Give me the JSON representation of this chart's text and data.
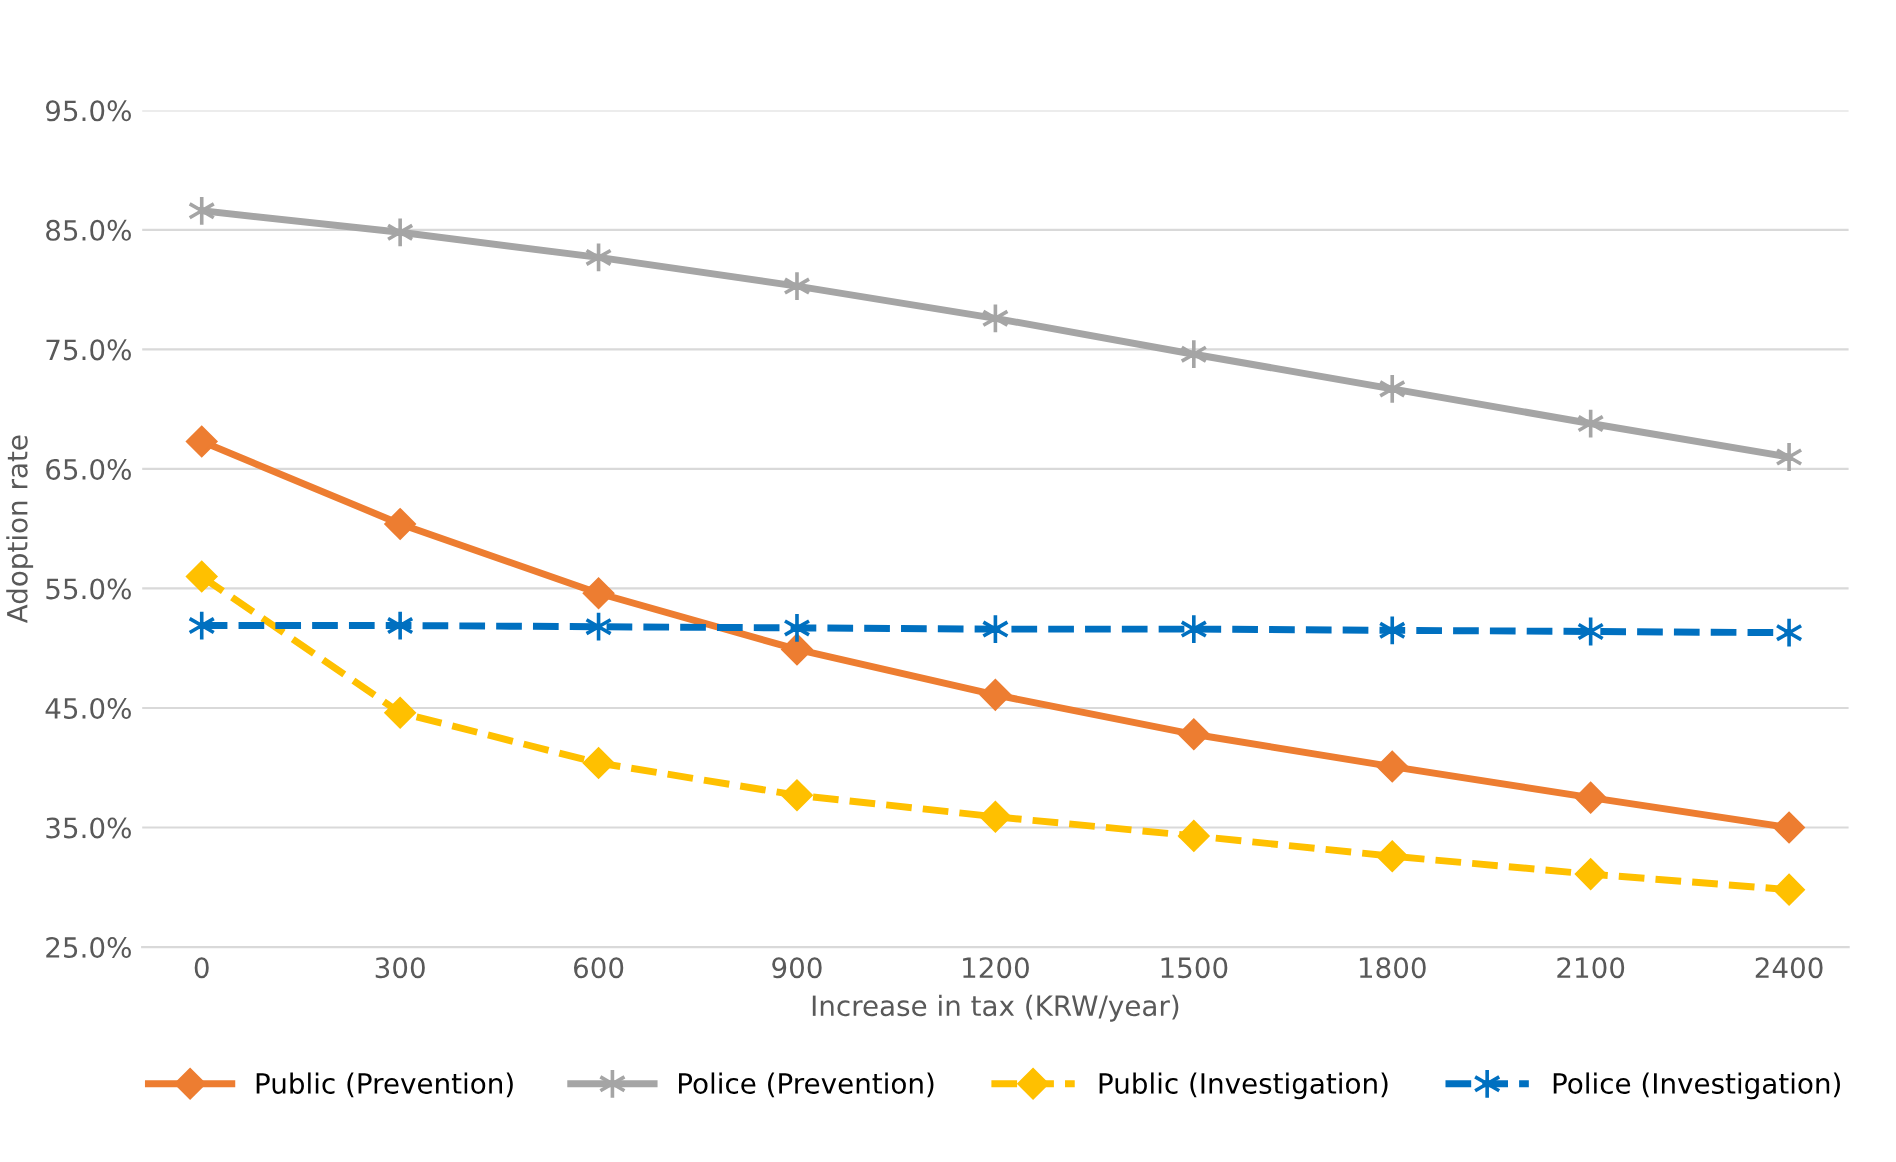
{
  "chart_data": {
    "type": "line",
    "xlabel": "Increase in tax (KRW/year)",
    "ylabel": "Adoption rate",
    "categories": [
      "0",
      "300",
      "600",
      "900",
      "1200",
      "1500",
      "1800",
      "2100",
      "2400"
    ],
    "series": [
      {
        "name": "Public (Prevention)",
        "color": "#ed7d31",
        "marker": "diamond",
        "line_style": "solid",
        "values": [
          67.3,
          60.4,
          54.6,
          49.9,
          46.1,
          42.8,
          40.1,
          37.5,
          35.0
        ]
      },
      {
        "name": "Police (Prevention)",
        "color": "#a5a5a5",
        "marker": "cross",
        "line_style": "solid",
        "values": [
          86.6,
          84.8,
          82.7,
          80.3,
          77.6,
          74.6,
          71.7,
          68.8,
          66.0
        ]
      },
      {
        "name": "Public (Investigation)",
        "color": "#ffc000",
        "marker": "diamond",
        "line_style": "dashed",
        "values": [
          56.0,
          44.6,
          40.4,
          37.7,
          35.9,
          34.3,
          32.6,
          31.1,
          29.8
        ]
      },
      {
        "name": "Police (Investigation)",
        "color": "#0070c0",
        "marker": "cross",
        "line_style": "dashed",
        "values": [
          51.9,
          51.9,
          51.8,
          51.7,
          51.6,
          51.6,
          51.5,
          51.4,
          51.3
        ]
      }
    ],
    "ylim": [
      25,
      95
    ],
    "yticks": [
      {
        "value": 25,
        "label": "25.0%"
      },
      {
        "value": 35,
        "label": "35.0%"
      },
      {
        "value": 45,
        "label": "45.0%"
      },
      {
        "value": 55,
        "label": "55.0%"
      },
      {
        "value": 65,
        "label": "65.0%"
      },
      {
        "value": 75,
        "label": "75.0%"
      },
      {
        "value": 85,
        "label": "85.0%"
      },
      {
        "value": 95,
        "label": "95.0%"
      }
    ],
    "grid": "y",
    "legend": "bottom"
  }
}
